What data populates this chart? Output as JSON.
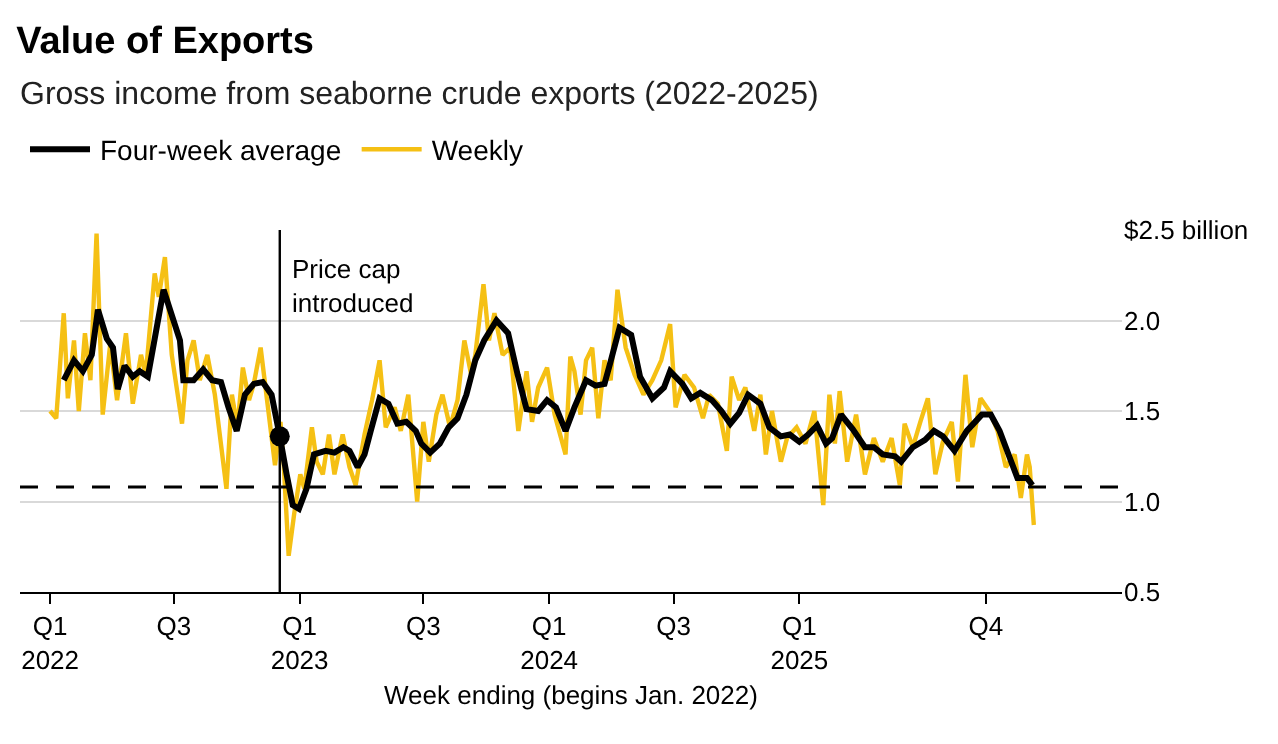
{
  "chart_data": {
    "type": "line",
    "title": "Value of Exports",
    "subtitle": "Gross income from seaborne crude exports (2022-2025)",
    "xlabel": "Week ending (begins Jan. 2022)",
    "xlim": [
      "2021-11-18",
      "2026-04-18"
    ],
    "xticks": [
      {
        "value": "2022-01-01",
        "label": "Q1\n2022"
      },
      {
        "value": "2022-07-01",
        "label": "Q3"
      },
      {
        "value": "2023-01-01",
        "label": "Q1\n2023"
      },
      {
        "value": "2023-07-01",
        "label": "Q3"
      },
      {
        "value": "2024-01-01",
        "label": "Q1\n2024"
      },
      {
        "value": "2024-07-01",
        "label": "Q3"
      },
      {
        "value": "2025-01-01",
        "label": "Q1\n2025"
      },
      {
        "value": "2025-10-01",
        "label": "Q4"
      }
    ],
    "ylim": [
      0.5,
      2.5
    ],
    "yticks": [
      0.5,
      {
        "value": 1.0,
        "label": "1.0"
      },
      1.5,
      {
        "value": 2.0,
        "label": "2.0"
      },
      {
        "value": 2.5,
        "label": "$2.5 billion"
      }
    ],
    "grid": "y",
    "legend": "top left",
    "marker": "none",
    "line_style": "solid",
    "ref_lines": [
      {
        "axis": "x",
        "value": "2022-12-03",
        "label": "Price cap\nintroduced",
        "color": "#000000",
        "line_style": "solid"
      },
      {
        "axis": "y",
        "value": 1.08,
        "color": "#000000",
        "line_style": "dashed"
      }
    ],
    "series": [
      {
        "name": "Four-week average",
        "color": "#000000",
        "x": [
          "2022-01-21",
          "2022-02-05",
          "2022-02-18",
          "2022-03-03",
          "2022-03-12",
          "2022-03-25",
          "2022-04-03",
          "2022-04-10",
          "2022-04-20",
          "2022-05-02",
          "2022-05-12",
          "2022-05-24",
          "2022-06-16",
          "2022-07-10",
          "2022-07-15",
          "2022-07-30",
          "2022-08-13",
          "2022-08-26",
          "2022-09-08",
          "2022-09-19",
          "2022-10-01",
          "2022-10-13",
          "2022-10-26",
          "2022-11-08",
          "2022-11-21",
          "2022-12-03",
          "2022-12-13",
          "2022-12-22",
          "2022-12-31",
          "2023-01-11",
          "2023-01-22",
          "2023-02-08",
          "2023-02-21",
          "2023-03-06",
          "2023-03-15",
          "2023-03-27",
          "2023-04-06",
          "2023-04-15",
          "2023-04-28",
          "2023-05-11",
          "2023-05-24",
          "2023-06-06",
          "2023-06-20",
          "2023-06-28",
          "2023-07-11",
          "2023-07-25",
          "2023-08-07",
          "2023-08-20",
          "2023-09-02",
          "2023-09-15",
          "2023-09-28",
          "2023-10-16",
          "2023-11-02",
          "2023-11-16",
          "2023-11-29",
          "2023-12-16",
          "2023-12-29",
          "2024-01-11",
          "2024-01-25",
          "2024-02-07",
          "2024-02-24",
          "2024-03-09",
          "2024-03-22",
          "2024-03-30",
          "2024-04-13",
          "2024-04-30",
          "2024-05-13",
          "2024-05-31",
          "2024-06-17",
          "2024-06-26",
          "2024-07-14",
          "2024-07-27",
          "2024-08-09",
          "2024-08-26",
          "2024-09-09",
          "2024-09-22",
          "2024-10-05",
          "2024-10-18",
          "2024-11-05",
          "2024-11-18",
          "2024-12-05",
          "2024-12-18",
          "2025-01-01",
          "2025-01-14",
          "2025-01-27",
          "2025-02-09",
          "2025-02-18",
          "2025-03-03",
          "2025-03-20",
          "2025-04-07",
          "2025-04-20",
          "2025-05-03",
          "2025-05-21",
          "2025-05-30",
          "2025-06-16",
          "2025-07-04",
          "2025-07-17",
          "2025-07-30",
          "2025-08-16",
          "2025-09-03",
          "2025-09-25",
          "2025-10-08",
          "2025-10-21",
          "2025-11-03",
          "2025-11-16",
          "2025-11-30",
          "2025-12-08"
        ],
        "values": [
          1.67,
          1.78,
          1.72,
          1.81,
          2.06,
          1.9,
          1.85,
          1.62,
          1.75,
          1.69,
          1.72,
          1.69,
          2.17,
          1.89,
          1.67,
          1.67,
          1.73,
          1.67,
          1.66,
          1.52,
          1.39,
          1.59,
          1.65,
          1.66,
          1.59,
          1.36,
          1.15,
          0.98,
          0.96,
          1.07,
          1.26,
          1.28,
          1.27,
          1.3,
          1.28,
          1.19,
          1.26,
          1.39,
          1.57,
          1.54,
          1.43,
          1.44,
          1.39,
          1.32,
          1.27,
          1.32,
          1.41,
          1.46,
          1.59,
          1.78,
          1.89,
          2.0,
          1.93,
          1.7,
          1.51,
          1.5,
          1.56,
          1.52,
          1.39,
          1.52,
          1.67,
          1.64,
          1.65,
          1.76,
          1.96,
          1.92,
          1.69,
          1.57,
          1.63,
          1.72,
          1.65,
          1.57,
          1.6,
          1.56,
          1.5,
          1.43,
          1.49,
          1.59,
          1.54,
          1.41,
          1.36,
          1.37,
          1.33,
          1.37,
          1.42,
          1.32,
          1.35,
          1.48,
          1.4,
          1.3,
          1.3,
          1.26,
          1.25,
          1.22,
          1.3,
          1.34,
          1.39,
          1.36,
          1.28,
          1.39,
          1.48,
          1.48,
          1.39,
          1.26,
          1.13,
          1.13,
          1.09
        ]
      },
      {
        "name": "Weekly",
        "color": "#f5c014",
        "x": [
          "2022-01-01",
          "2022-01-10",
          "2022-01-21",
          "2022-01-27",
          "2022-02-05",
          "2022-02-12",
          "2022-02-21",
          "2022-03-01",
          "2022-03-10",
          "2022-03-19",
          "2022-03-30",
          "2022-04-09",
          "2022-04-22",
          "2022-05-02",
          "2022-05-14",
          "2022-05-21",
          "2022-06-03",
          "2022-06-09",
          "2022-06-18",
          "2022-06-28",
          "2022-07-13",
          "2022-07-21",
          "2022-07-30",
          "2022-08-08",
          "2022-08-19",
          "2022-08-30",
          "2022-09-16",
          "2022-09-24",
          "2022-10-02",
          "2022-10-10",
          "2022-10-19",
          "2022-10-26",
          "2022-11-05",
          "2022-11-17",
          "2022-11-26",
          "2022-12-04",
          "2022-12-09",
          "2022-12-16",
          "2022-12-24",
          "2023-01-02",
          "2023-01-08",
          "2023-01-19",
          "2023-01-26",
          "2023-02-04",
          "2023-02-13",
          "2023-02-21",
          "2023-03-05",
          "2023-03-15",
          "2023-03-24",
          "2023-04-06",
          "2023-04-17",
          "2023-04-28",
          "2023-05-07",
          "2023-05-20",
          "2023-05-29",
          "2023-06-09",
          "2023-06-22",
          "2023-07-01",
          "2023-07-09",
          "2023-07-20",
          "2023-07-29",
          "2023-08-09",
          "2023-08-20",
          "2023-08-30",
          "2023-09-09",
          "2023-09-15",
          "2023-09-27",
          "2023-10-05",
          "2023-10-13",
          "2023-10-25",
          "2023-11-05",
          "2023-11-17",
          "2023-11-29",
          "2023-12-07",
          "2023-12-16",
          "2023-12-29",
          "2024-01-09",
          "2024-01-25",
          "2024-02-01",
          "2024-02-07",
          "2024-02-16",
          "2024-02-24",
          "2024-03-04",
          "2024-03-13",
          "2024-03-22",
          "2024-03-31",
          "2024-04-10",
          "2024-04-22",
          "2024-05-05",
          "2024-05-18",
          "2024-05-31",
          "2024-06-13",
          "2024-06-26",
          "2024-07-04",
          "2024-07-17",
          "2024-07-31",
          "2024-08-13",
          "2024-08-22",
          "2024-09-04",
          "2024-09-17",
          "2024-09-24",
          "2024-10-05",
          "2024-10-14",
          "2024-10-27",
          "2024-11-05",
          "2024-11-13",
          "2024-11-22",
          "2024-12-05",
          "2024-12-14",
          "2024-12-28",
          "2025-01-10",
          "2025-01-23",
          "2025-02-05",
          "2025-02-14",
          "2025-02-22",
          "2025-03-01",
          "2025-03-12",
          "2025-03-25",
          "2025-04-07",
          "2025-04-20",
          "2025-05-03",
          "2025-05-16",
          "2025-05-28",
          "2025-06-04",
          "2025-06-16",
          "2025-06-27",
          "2025-07-08",
          "2025-07-19",
          "2025-07-30",
          "2025-08-12",
          "2025-08-21",
          "2025-09-01",
          "2025-09-11",
          "2025-09-23",
          "2025-10-06",
          "2025-10-18",
          "2025-10-30",
          "2025-11-12",
          "2025-11-21",
          "2025-11-30",
          "2025-12-04",
          "2025-12-10"
        ],
        "values": [
          1.5,
          1.46,
          2.04,
          1.57,
          1.89,
          1.5,
          1.93,
          1.67,
          2.48,
          1.48,
          1.87,
          1.56,
          1.93,
          1.54,
          1.81,
          1.7,
          2.26,
          2.13,
          2.35,
          1.81,
          1.43,
          1.78,
          1.89,
          1.67,
          1.81,
          1.59,
          1.07,
          1.59,
          1.41,
          1.74,
          1.56,
          1.65,
          1.85,
          1.48,
          1.2,
          1.44,
          1.19,
          0.7,
          0.93,
          1.15,
          1.07,
          1.41,
          1.22,
          1.15,
          1.37,
          1.15,
          1.37,
          1.19,
          1.09,
          1.37,
          1.56,
          1.78,
          1.41,
          1.52,
          1.39,
          1.59,
          1.0,
          1.44,
          1.22,
          1.48,
          1.59,
          1.41,
          1.56,
          1.89,
          1.7,
          1.81,
          2.2,
          1.89,
          2.04,
          1.81,
          1.85,
          1.39,
          1.72,
          1.44,
          1.63,
          1.74,
          1.48,
          1.26,
          1.8,
          1.72,
          1.48,
          1.78,
          1.85,
          1.46,
          1.78,
          1.67,
          2.17,
          1.85,
          1.7,
          1.59,
          1.67,
          1.78,
          1.98,
          1.52,
          1.7,
          1.63,
          1.46,
          1.59,
          1.54,
          1.28,
          1.69,
          1.56,
          1.63,
          1.39,
          1.59,
          1.26,
          1.5,
          1.22,
          1.35,
          1.41,
          1.32,
          1.5,
          0.98,
          1.59,
          1.32,
          1.61,
          1.22,
          1.48,
          1.15,
          1.35,
          1.22,
          1.35,
          1.09,
          1.43,
          1.3,
          1.44,
          1.57,
          1.15,
          1.33,
          1.44,
          1.11,
          1.7,
          1.3,
          1.57,
          1.5,
          1.39,
          1.19,
          1.26,
          1.02,
          1.26,
          1.19,
          0.87
        ]
      },
      {
        "color": "#000000",
        "marker": "circle",
        "type": "scatter",
        "x": [
          "2022-12-03"
        ],
        "values": [
          1.36
        ]
      }
    ]
  }
}
